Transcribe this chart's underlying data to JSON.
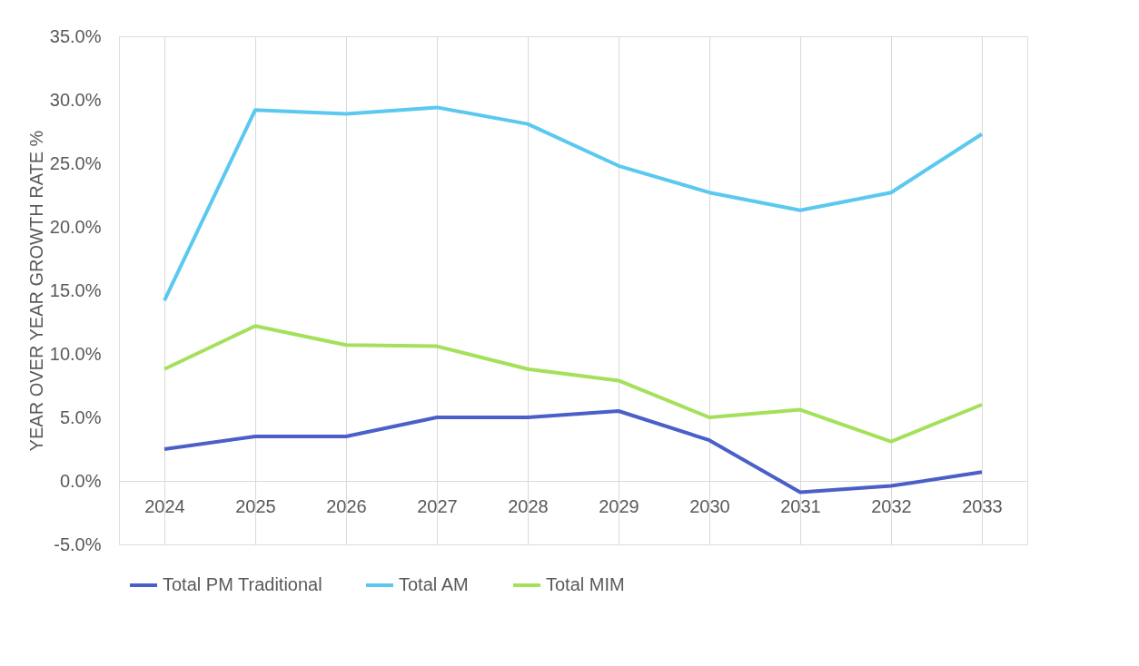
{
  "chart_data": {
    "type": "line",
    "ylabel": "YEAR OVER YEAR GROWTH RATE %",
    "categories": [
      "2024",
      "2025",
      "2026",
      "2027",
      "2028",
      "2029",
      "2030",
      "2031",
      "2032",
      "2033"
    ],
    "series": [
      {
        "name": "Total PM Traditional",
        "color": "#4a5fc8",
        "values": [
          2.5,
          3.5,
          3.5,
          5.0,
          5.0,
          5.5,
          3.2,
          -0.9,
          -0.4,
          0.7
        ]
      },
      {
        "name": "Total AM",
        "color": "#5bc8f0",
        "values": [
          14.2,
          29.2,
          28.9,
          29.4,
          28.1,
          24.8,
          22.7,
          21.3,
          22.7,
          27.3
        ]
      },
      {
        "name": "Total MIM",
        "color": "#a4e05a",
        "values": [
          8.8,
          12.2,
          10.7,
          10.6,
          8.8,
          7.9,
          5.0,
          5.6,
          3.1,
          6.0
        ]
      }
    ],
    "ylim": [
      -5,
      35
    ],
    "yticks": [
      {
        "value": -5,
        "label": "-5.0%"
      },
      {
        "value": 0,
        "label": "0.0%"
      },
      {
        "value": 5,
        "label": "5.0%"
      },
      {
        "value": 10,
        "label": "10.0%"
      },
      {
        "value": 15,
        "label": "15.0%"
      },
      {
        "value": 20,
        "label": "20.0%"
      },
      {
        "value": 25,
        "label": "25.0%"
      },
      {
        "value": 30,
        "label": "30.0%"
      },
      {
        "value": 35,
        "label": "35.0%"
      }
    ],
    "grid": "x",
    "legend": "bottom",
    "marker": "none",
    "line_style": "solid"
  }
}
